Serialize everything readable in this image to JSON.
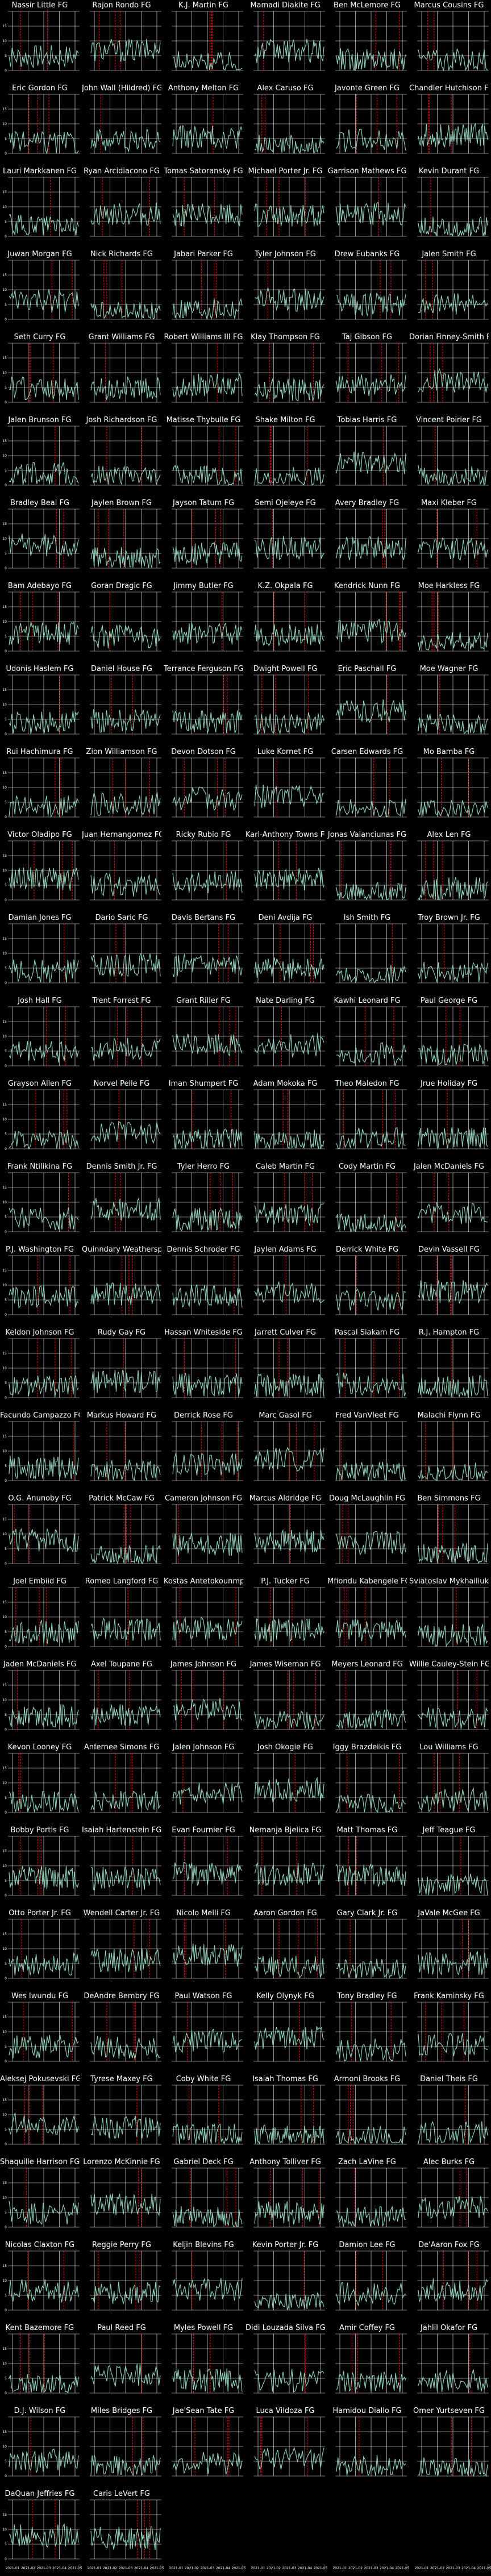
{
  "figure": {
    "y_ticks": [
      "0",
      "5",
      "10",
      "15"
    ],
    "x_ticks": [
      "2021-01",
      "2021-02",
      "2021-03",
      "2021-04",
      "2021-05"
    ],
    "colors": {
      "background": "#000000",
      "line": "#8ecfb8",
      "grid": "#ffffff",
      "marker": "#ff0000"
    }
  },
  "chart_data": {
    "type": "line",
    "series_suffix": "FG",
    "ylim": [
      0,
      20
    ],
    "panels": [
      "Nassir Little FG",
      "Rajon Rondo FG",
      "K.J. Martin FG",
      "Mamadi Diakite FG",
      "Ben McLemore FG",
      "Marcus Cousins FG",
      "Eric Gordon FG",
      "John Wall (Hildred) FG",
      "Anthony Melton FG",
      "Alex Caruso FG",
      "Javonte Green FG",
      "Chandler Hutchison FG",
      "Lauri Markkanen FG",
      "Ryan Arcidiacono FG",
      "Tomas Satoransky FG",
      "Michael Porter Jr. FG",
      "Garrison Mathews FG",
      "Kevin Durant FG",
      "Juwan Morgan FG",
      "Nick Richards FG",
      "Jabari Parker FG",
      "Tyler Johnson FG",
      "Drew Eubanks FG",
      "Jalen Smith FG",
      "Seth Curry FG",
      "Grant Williams FG",
      "Robert Williams III FG",
      "Klay Thompson FG",
      "Taj Gibson FG",
      "Dorian Finney-Smith FG",
      "Jalen Brunson FG",
      "Josh Richardson FG",
      "Matisse Thybulle FG",
      "Shake Milton FG",
      "Tobias Harris FG",
      "Vincent Poirier FG",
      "Bradley Beal FG",
      "Jaylen Brown FG",
      "Jayson Tatum FG",
      "Semi Ojeleye FG",
      "Avery Bradley FG",
      "Maxi Kleber FG",
      "Bam Adebayo FG",
      "Goran Dragic FG",
      "Jimmy Butler FG",
      "K.Z. Okpala FG",
      "Kendrick Nunn FG",
      "Moe Harkless FG",
      "Udonis Haslem FG",
      "Daniel House FG",
      "Terrance Ferguson FG",
      "Dwight Powell FG",
      "Eric Paschall FG",
      "Moe Wagner FG",
      "Rui Hachimura FG",
      "Zion Williamson FG",
      "Devon Dotson FG",
      "Luke Kornet FG",
      "Carsen Edwards FG",
      "Mo Bamba FG",
      "Victor Oladipo FG",
      "Juan Hernangomez FG",
      "Ricky Rubio FG",
      "Karl-Anthony Towns FG",
      "Jonas Valanciunas FG",
      "Alex Len FG",
      "Damian Jones FG",
      "Dario Saric FG",
      "Davis Bertans FG",
      "Deni Avdija FG",
      "Ish Smith FG",
      "Troy Brown Jr. FG",
      "Josh Hall FG",
      "Trent Forrest FG",
      "Grant Riller FG",
      "Nate Darling FG",
      "Kawhi Leonard FG",
      "Paul George FG",
      "Grayson Allen FG",
      "Norvel Pelle FG",
      "Iman Shumpert FG",
      "Adam Mokoka FG",
      "Theo Maledon FG",
      "Jrue Holiday FG",
      "Frank Ntilikina FG",
      "Dennis Smith Jr. FG",
      "Tyler Herro FG",
      "Caleb Martin FG",
      "Cody Martin FG",
      "Jalen McDaniels FG",
      "P.J. Washington FG",
      "Quinndary Weatherspoon FG",
      "Dennis Schroder FG",
      "Jaylen Adams FG",
      "Derrick White FG",
      "Devin Vassell FG",
      "Keldon Johnson FG",
      "Rudy Gay FG",
      "Hassan Whiteside FG",
      "Jarrett Culver FG",
      "Pascal Siakam FG",
      "R.J. Hampton FG",
      "Facundo Campazzo FG",
      "Markus Howard FG",
      "Derrick Rose FG",
      "Marc Gasol FG",
      "Fred VanVleet FG",
      "Malachi Flynn FG",
      "O.G. Anunoby FG",
      "Patrick McCaw FG",
      "Cameron Johnson FG",
      "Marcus Aldridge FG",
      "Doug McLaughlin FG",
      "Ben Simmons FG",
      "Joel Embiid FG",
      "Romeo Langford FG",
      "Kostas Antetokounmpo FG",
      "P.J. Tucker FG",
      "Mfiondu Kabengele FG",
      "Sviatoslav Mykhailiuk FG",
      "Jaden McDaniels FG",
      "Axel Toupane FG",
      "James Johnson FG",
      "James Wiseman FG",
      "Meyers Leonard FG",
      "Willie Cauley-Stein FG",
      "Kevon Looney FG",
      "Anfernee Simons FG",
      "Jalen Johnson FG",
      "Josh Okogie FG",
      "Iggy Brazdeikis FG",
      "Lou Williams FG",
      "Bobby Portis FG",
      "Isaiah Hartenstein FG",
      "Evan Fournier FG",
      "Nemanja Bjelica FG",
      "Matt Thomas FG",
      "Jeff Teague FG",
      "Otto Porter Jr. FG",
      "Wendell Carter Jr. FG",
      "Nicolo Melli FG",
      "Aaron Gordon FG",
      "Gary Clark Jr. FG",
      "JaVale McGee FG",
      "Wes Iwundu FG",
      "DeAndre Bembry FG",
      "Paul Watson FG",
      "Kelly Olynyk FG",
      "Tony Bradley FG",
      "Frank Kaminsky FG",
      "Aleksej Pokusevski FG",
      "Tyrese Maxey FG",
      "Coby White FG",
      "Isaiah Thomas FG",
      "Armoni Brooks FG",
      "Daniel Theis FG",
      "Shaquille Harrison FG",
      "Lorenzo McKinnie FG",
      "Gabriel Deck FG",
      "Anthony Tolliver FG",
      "Zach LaVine FG",
      "Alec Burks FG",
      "Nicolas Claxton FG",
      "Reggie Perry FG",
      "Keljin Blevins FG",
      "Kevin Porter Jr. FG",
      "Damion Lee FG",
      "De'Aaron Fox FG",
      "Kent Bazemore FG",
      "Paul Reed FG",
      "Myles Powell FG",
      "Didi Louzada Silva FG",
      "Amir Coffey FG",
      "Jahlil Okafor FG",
      "D.J. Wilson FG",
      "Miles Bridges FG",
      "Jae'Sean Tate FG",
      "Luca Vildoza FG",
      "Hamidou Diallo FG",
      "Omer Yurtseven FG",
      "DaQuan Jeffries FG",
      "Caris LeVert FG"
    ]
  }
}
